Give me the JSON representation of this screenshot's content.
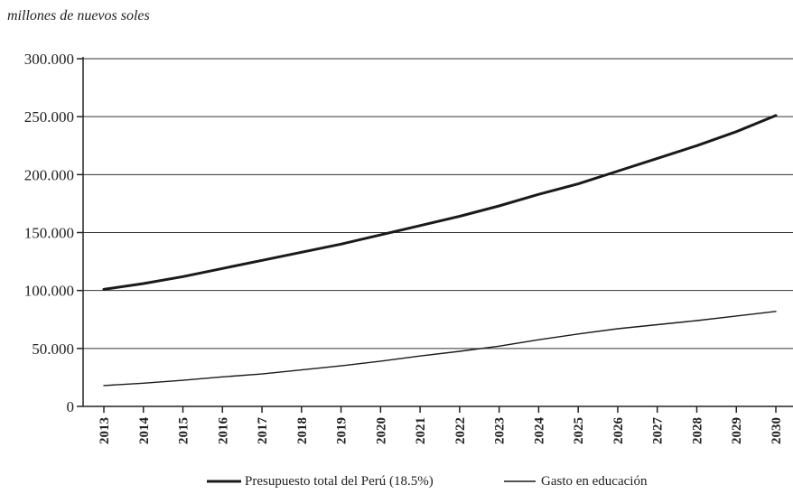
{
  "chart_data": {
    "type": "line",
    "title": "",
    "ylabel": "millones de nuevos soles",
    "xlabel": "",
    "x": [
      "2013",
      "2014",
      "2015",
      "2016",
      "2017",
      "2018",
      "2019",
      "2020",
      "2021",
      "2022",
      "2023",
      "2024",
      "2025",
      "2026",
      "2027",
      "2028",
      "2029",
      "2030"
    ],
    "ylim": [
      0,
      300000
    ],
    "yticks": [
      0,
      50000,
      100000,
      150000,
      200000,
      250000,
      300000
    ],
    "ytick_labels": [
      "0",
      "50.000",
      "100.000",
      "150.000",
      "200.000",
      "250.000",
      "300.000"
    ],
    "grid": true,
    "legend_position": "bottom",
    "series": [
      {
        "name": "Presupuesto total del Perú (18.5%)",
        "values": [
          101000,
          106000,
          112000,
          119000,
          126000,
          133000,
          140000,
          148000,
          156000,
          164000,
          173000,
          183000,
          192000,
          203000,
          214000,
          225000,
          237000,
          251000
        ],
        "color": "#1a1a1a"
      },
      {
        "name": "Gasto en educación",
        "values": [
          18000,
          20000,
          22500,
          25500,
          28000,
          31500,
          35000,
          39000,
          43500,
          47500,
          52000,
          57500,
          62500,
          67000,
          70500,
          74000,
          78000,
          82000
        ],
        "color": "#1a1a1a"
      }
    ]
  }
}
